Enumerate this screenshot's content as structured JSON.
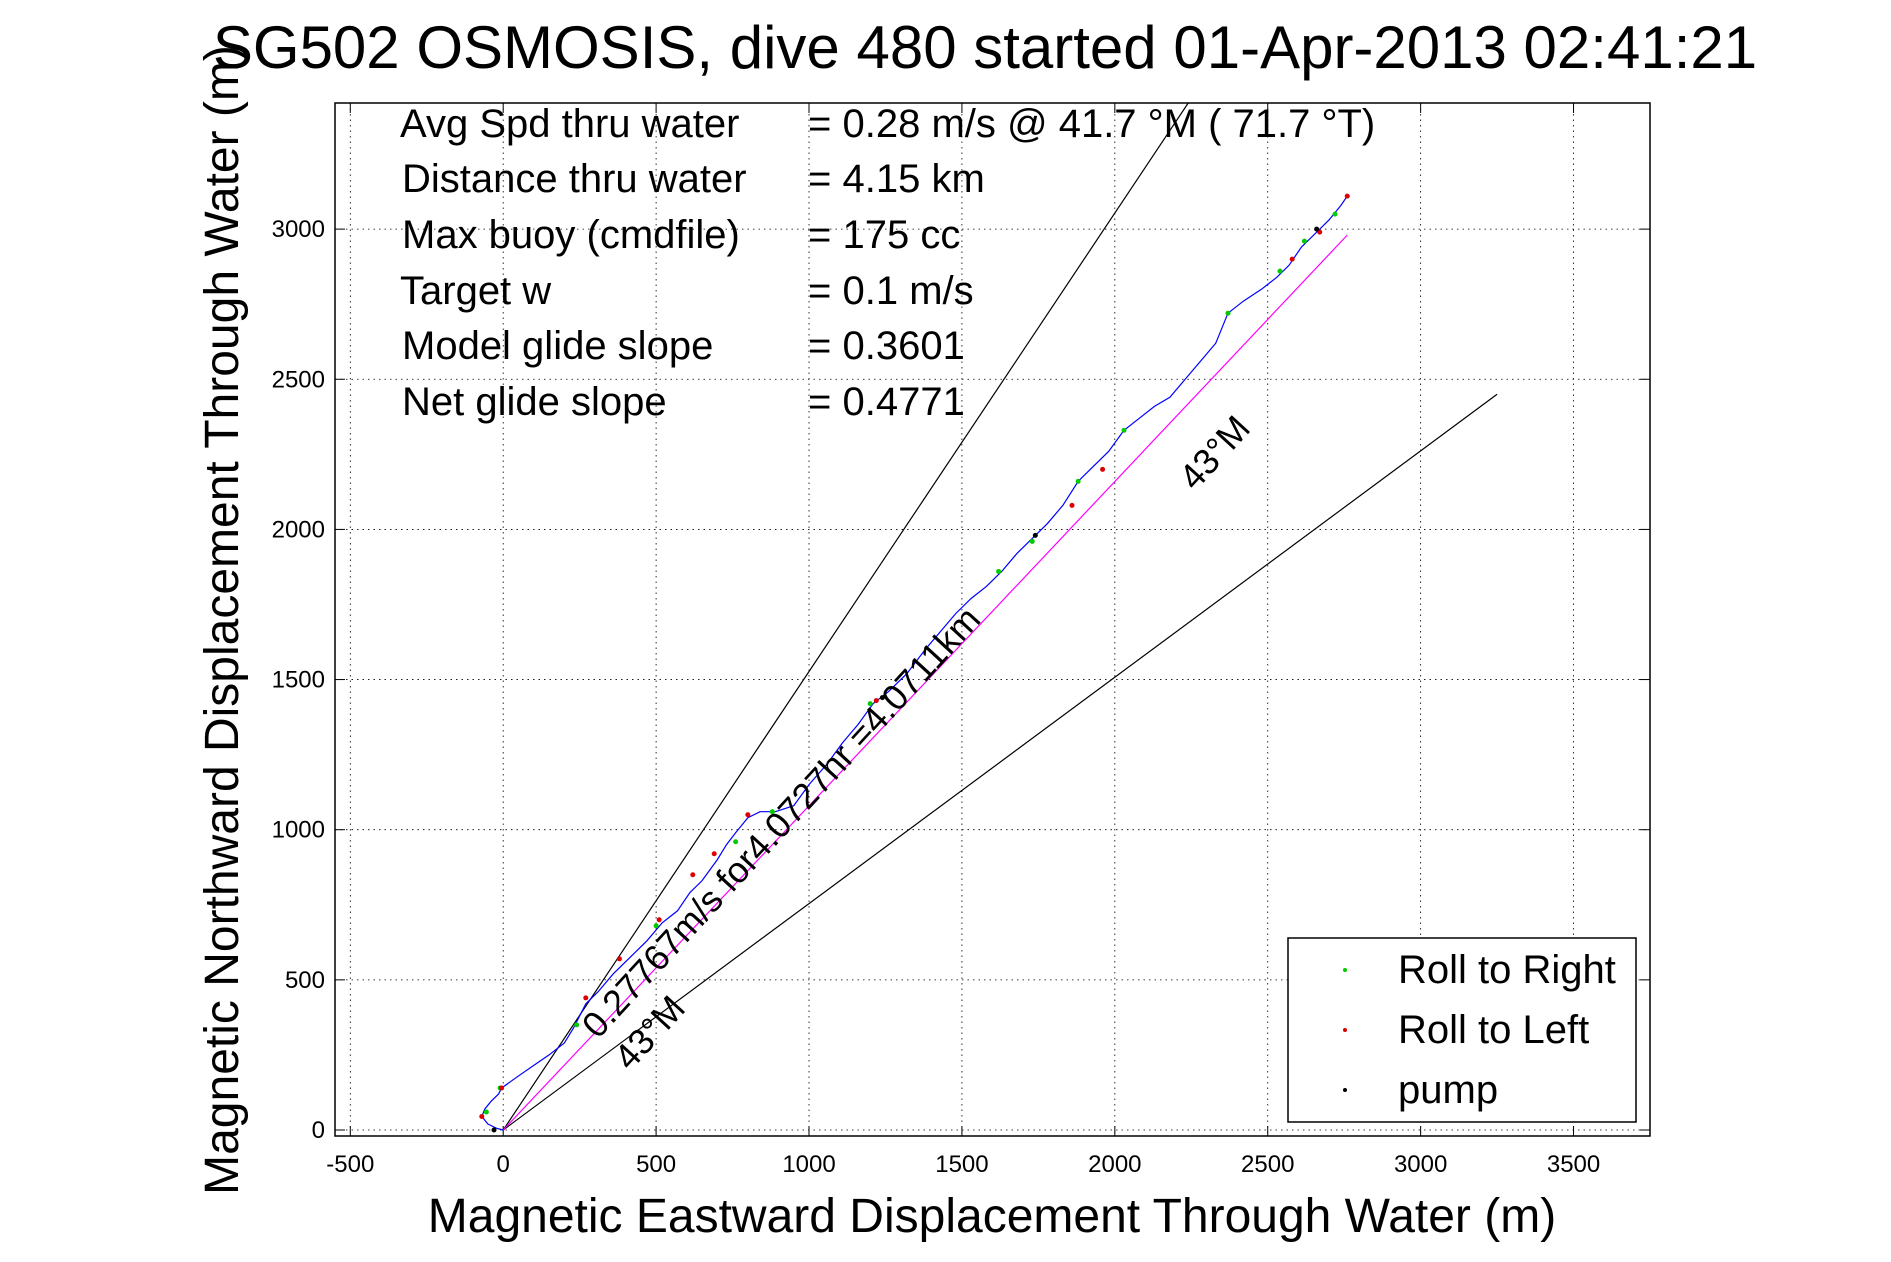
{
  "chart_data": {
    "type": "line",
    "title": "SG502 OSMOSIS, dive 480 started 01-Apr-2013 02:41:21",
    "xlabel": "Magnetic Eastward Displacement Through Water (m)",
    "ylabel": "Magnetic Northward Displacement Through Water (m)",
    "xlim": [
      -550,
      3750
    ],
    "ylim": [
      -20,
      3420
    ],
    "xticks": [
      -500,
      0,
      500,
      1000,
      1500,
      2000,
      2500,
      3000,
      3500
    ],
    "yticks": [
      0,
      500,
      1000,
      1500,
      2000,
      2500,
      3000
    ],
    "grid": true,
    "info_lines": [
      {
        "label": "Avg Spd thru water",
        "value": "=  0.28 m/s @  41.7 °M ( 71.7 °T)"
      },
      {
        "label": "Distance thru water",
        "value": "=  4.15 km"
      },
      {
        "label": "Max buoy (cmdfile)",
        "value": "= 175 cc"
      },
      {
        "label": "Target w",
        "value": "= 0.1 m/s"
      },
      {
        "label": "Model glide slope",
        "value": "= 0.3601"
      },
      {
        "label": "Net glide slope",
        "value": "= 0.4771"
      }
    ],
    "annotations": {
      "track_label": "0.27767m/s for4.0727hr =4.0711km",
      "upper_heading": "43°M",
      "lower_heading": "43°M"
    },
    "reference_lines": [
      {
        "name": "upper-bound",
        "points": [
          [
            0,
            0
          ],
          [
            2240,
            3420
          ]
        ],
        "color": "#000000"
      },
      {
        "name": "lower-bound",
        "points": [
          [
            0,
            0
          ],
          [
            3250,
            2450
          ]
        ],
        "color": "#000000"
      },
      {
        "name": "heading-line",
        "points": [
          [
            0,
            0
          ],
          [
            2760,
            2980
          ]
        ],
        "color": "#ff00ff"
      }
    ],
    "series": [
      {
        "name": "track",
        "color": "#0000ff",
        "points": [
          [
            0,
            0
          ],
          [
            -20,
            5
          ],
          [
            -50,
            20
          ],
          [
            -70,
            45
          ],
          [
            -60,
            70
          ],
          [
            -40,
            95
          ],
          [
            -15,
            120
          ],
          [
            -5,
            140
          ],
          [
            50,
            180
          ],
          [
            100,
            215
          ],
          [
            150,
            250
          ],
          [
            200,
            290
          ],
          [
            230,
            340
          ],
          [
            270,
            420
          ],
          [
            310,
            460
          ],
          [
            360,
            520
          ],
          [
            420,
            580
          ],
          [
            470,
            630
          ],
          [
            520,
            690
          ],
          [
            570,
            730
          ],
          [
            610,
            790
          ],
          [
            650,
            830
          ],
          [
            700,
            900
          ],
          [
            730,
            950
          ],
          [
            760,
            990
          ],
          [
            800,
            1040
          ],
          [
            840,
            1060
          ],
          [
            890,
            1060
          ],
          [
            950,
            1080
          ],
          [
            1000,
            1150
          ],
          [
            1060,
            1220
          ],
          [
            1110,
            1290
          ],
          [
            1160,
            1350
          ],
          [
            1210,
            1420
          ],
          [
            1260,
            1460
          ],
          [
            1320,
            1520
          ],
          [
            1380,
            1600
          ],
          [
            1430,
            1660
          ],
          [
            1480,
            1720
          ],
          [
            1530,
            1770
          ],
          [
            1580,
            1810
          ],
          [
            1630,
            1860
          ],
          [
            1680,
            1920
          ],
          [
            1730,
            1970
          ],
          [
            1780,
            2020
          ],
          [
            1830,
            2080
          ],
          [
            1880,
            2160
          ],
          [
            1930,
            2210
          ],
          [
            1980,
            2260
          ],
          [
            2030,
            2330
          ],
          [
            2080,
            2370
          ],
          [
            2130,
            2410
          ],
          [
            2180,
            2440
          ],
          [
            2230,
            2500
          ],
          [
            2280,
            2560
          ],
          [
            2330,
            2620
          ],
          [
            2370,
            2720
          ],
          [
            2420,
            2760
          ],
          [
            2480,
            2800
          ],
          [
            2530,
            2840
          ],
          [
            2570,
            2880
          ],
          [
            2610,
            2940
          ],
          [
            2660,
            2990
          ],
          [
            2700,
            3030
          ],
          [
            2740,
            3080
          ],
          [
            2760,
            3110
          ]
        ]
      },
      {
        "name": "Roll to Right",
        "color": "#00cc00",
        "points": [
          [
            -55,
            60
          ],
          [
            -10,
            140
          ],
          [
            240,
            350
          ],
          [
            500,
            680
          ],
          [
            760,
            960
          ],
          [
            880,
            1060
          ],
          [
            1200,
            1420
          ],
          [
            1620,
            1860
          ],
          [
            1730,
            1960
          ],
          [
            1880,
            2160
          ],
          [
            2030,
            2330
          ],
          [
            2370,
            2720
          ],
          [
            2540,
            2860
          ],
          [
            2620,
            2960
          ],
          [
            2720,
            3050
          ]
        ]
      },
      {
        "name": "Roll to Left",
        "color": "#dd0000",
        "points": [
          [
            -70,
            45
          ],
          [
            -5,
            140
          ],
          [
            270,
            440
          ],
          [
            380,
            570
          ],
          [
            510,
            700
          ],
          [
            620,
            850
          ],
          [
            690,
            920
          ],
          [
            800,
            1050
          ],
          [
            1220,
            1430
          ],
          [
            1860,
            2080
          ],
          [
            1960,
            2200
          ],
          [
            2580,
            2900
          ],
          [
            2670,
            2990
          ],
          [
            2760,
            3110
          ]
        ]
      },
      {
        "name": "pump",
        "color": "#000000",
        "points": [
          [
            -30,
            0
          ],
          [
            1240,
            1440
          ],
          [
            1740,
            1980
          ],
          [
            2660,
            3000
          ]
        ]
      }
    ],
    "legend": {
      "position": "bottom-right",
      "entries": [
        {
          "label": "Roll to Right",
          "color": "#00cc00"
        },
        {
          "label": "Roll to Left",
          "color": "#dd0000"
        },
        {
          "label": "pump",
          "color": "#000000"
        }
      ]
    }
  }
}
